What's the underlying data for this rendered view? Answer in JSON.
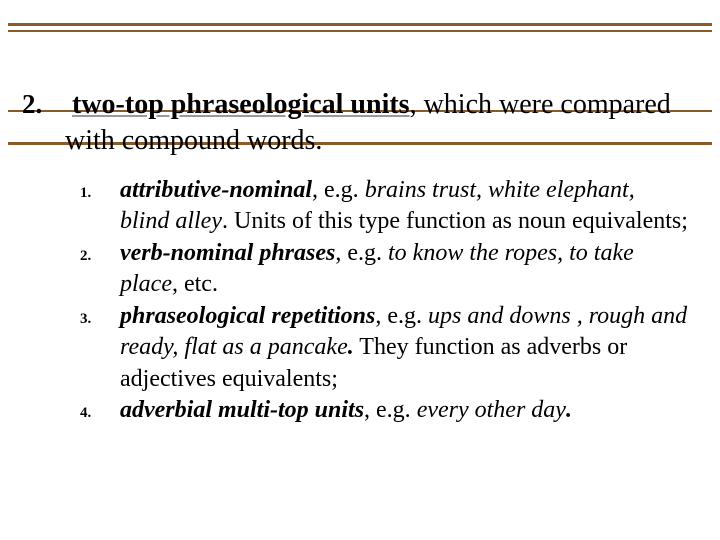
{
  "colors": {
    "border": "#8b5a2b",
    "background": "#ffffff",
    "text": "#000000"
  },
  "typography": {
    "heading_fontsize": 28,
    "body_fontsize": 24,
    "subnum_fontsize": 15,
    "font_family": "Times New Roman"
  },
  "heading": {
    "number": "2.",
    "bold_underlined": "two-top phraseological units",
    "after_comma": ", which were compared with compound words."
  },
  "items": [
    {
      "num": "1.",
      "term": "attributive-nominal",
      "after_term": ", e.g. ",
      "example": "brains trust, white elephant, blind alley",
      "tail": ". Units of this type function as noun equivalents;"
    },
    {
      "num": "2.",
      "term": "verb-nominal phrases",
      "after_term": ", e.g. ",
      "example": "to know the ropes, to take place",
      "tail": ", etc."
    },
    {
      "num": "3.",
      "term": "phraseological repetitions",
      "after_term": ", e.g. ",
      "example": "ups and downs , rough and ready, flat as a pancake",
      "period_bi": ".",
      "tail": " They function as adverbs or adjectives equivalents;"
    },
    {
      "num": "4.",
      "term": "adverbial multi-top units",
      "after_term": ", e.g. ",
      "example": "every other day",
      "period_bi": ".",
      "tail": ""
    }
  ]
}
